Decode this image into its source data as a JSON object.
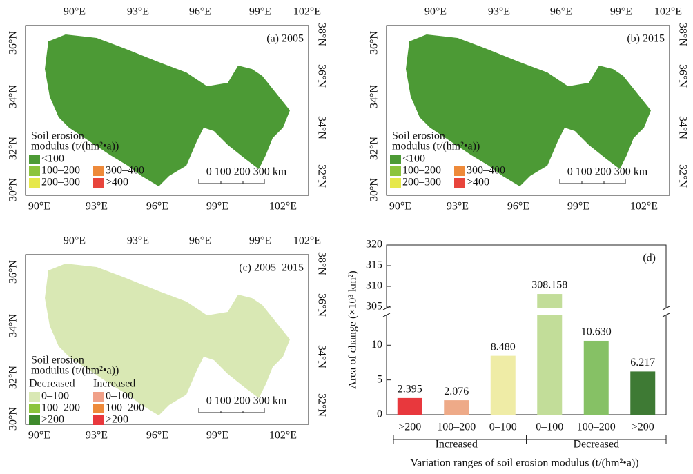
{
  "maps": {
    "axes": {
      "top": [
        "90°E",
        "93°E",
        "96°E",
        "99°E",
        "102°E"
      ],
      "bottom": [
        "90°E",
        "93°E",
        "96°E",
        "99°E",
        "102°E"
      ],
      "left": [
        "30°N",
        "32°N",
        "34°N",
        "36°N"
      ],
      "right": [
        "32°N",
        "34°N",
        "36°N",
        "38°N"
      ]
    },
    "panels": [
      {
        "label": "(a) 2005",
        "map_color": "#4c9a35",
        "legend_title": [
          "Soil erosion",
          "modulus (t/(hm²•a))"
        ],
        "legend": [
          {
            "label": "<100",
            "color": "#4c9a35"
          },
          {
            "label": "100–200",
            "color": "#8cc43c"
          },
          {
            "label": "200–300",
            "color": "#e6e84a"
          },
          {
            "label": "300–400",
            "color": "#ee8a3a"
          },
          {
            "label": ">400",
            "color": "#e8453c"
          }
        ],
        "scale": "0 100 200 300 km"
      },
      {
        "label": "(b) 2015",
        "map_color": "#4c9a35",
        "legend_title": [
          "Soil erosion",
          "modulus (t/(hm²•a))"
        ],
        "legend": [
          {
            "label": "<100",
            "color": "#4c9a35"
          },
          {
            "label": "100–200",
            "color": "#8cc43c"
          },
          {
            "label": "200–300",
            "color": "#e6e84a"
          },
          {
            "label": "300–400",
            "color": "#ee8a3a"
          },
          {
            "label": ">400",
            "color": "#e8453c"
          }
        ],
        "scale": "0 100 200 300 km"
      },
      {
        "label": "(c) 2005–2015",
        "map_color": "#d9e8b4",
        "legend_title": [
          "Soil erosion",
          "modulus (t/(hm²•a))"
        ],
        "legend_groups": [
          {
            "name": "Decreased",
            "items": [
              {
                "label": "0–100",
                "color": "#d9e8b4"
              },
              {
                "label": "100–200",
                "color": "#8cc43c"
              },
              {
                "label": ">200",
                "color": "#3e8a2c"
              }
            ]
          },
          {
            "name": "Increased",
            "items": [
              {
                "label": "0–100",
                "color": "#f0a088"
              },
              {
                "label": "100–200",
                "color": "#ee8a3a"
              },
              {
                "label": ">200",
                "color": "#e8383d"
              }
            ]
          }
        ],
        "scale": "0 100 200 300 km"
      }
    ]
  },
  "chart_data": {
    "type": "bar",
    "panel_label": "(d)",
    "categories": [
      ">200",
      "100–200",
      "0–100",
      "0–100",
      "100–200",
      ">200"
    ],
    "groups": [
      "Increased",
      "Decreased"
    ],
    "values": [
      2.395,
      2.076,
      8.48,
      308.158,
      10.63,
      6.217
    ],
    "value_labels": [
      "2.395",
      "2.076",
      "8.480",
      "308.158",
      "10.630",
      "6.217"
    ],
    "colors": [
      "#e8383d",
      "#eeaa88",
      "#efeca6",
      "#c2dd99",
      "#86c165",
      "#3e7a34"
    ],
    "ylim": [
      0,
      14.2
    ],
    "yticks": [
      0,
      5,
      10
    ],
    "y_upper_lim": [
      305,
      320
    ],
    "y_upper_ticks": [
      305,
      310,
      315,
      320
    ],
    "y_label": "Area of change (×10³ km²)",
    "x_label": "Variation ranges of soil erosion modulus (t/(hm²•a))"
  }
}
